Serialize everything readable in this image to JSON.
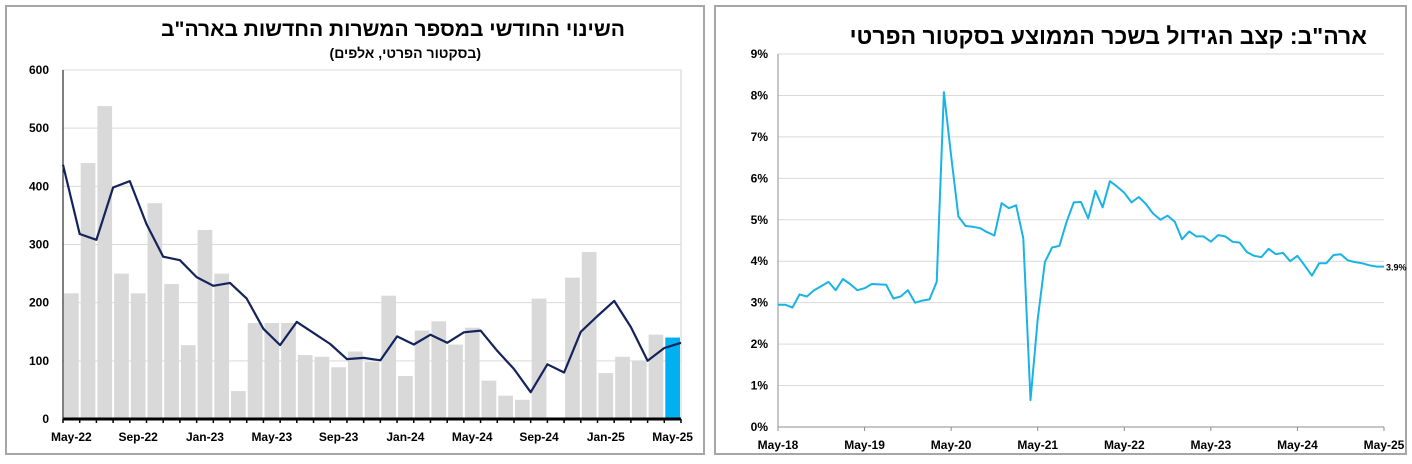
{
  "chart_data": [
    {
      "type": "bar",
      "title": "השינוי החודשי במספר המשרות החדשות בארה\"ב",
      "subtitle": "(בסקטור הפרטי, אלפים)",
      "x_tick_labels": [
        "May-22",
        "Sep-22",
        "Jan-23",
        "May-23",
        "Sep-23",
        "Jan-24",
        "May-24",
        "Sep-24",
        "Jan-25",
        "May-25"
      ],
      "y_tick_labels": [
        "0",
        "100",
        "200",
        "300",
        "400",
        "500",
        "600"
      ],
      "ylim": [
        0,
        600
      ],
      "grid": true,
      "bar_color": "#d9d9d9",
      "highlight_color": "#00b0f0",
      "line_color": "#14245a",
      "bar_values": [
        216,
        440,
        538,
        250,
        216,
        371,
        232,
        127,
        325,
        250,
        48,
        165,
        165,
        165,
        110,
        107,
        89,
        116,
        98,
        212,
        74,
        152,
        168,
        128,
        157,
        66,
        40,
        33,
        207,
        0,
        243,
        287,
        79,
        107,
        100,
        145,
        140
      ],
      "line_values": [
        437,
        318,
        308,
        398,
        409,
        335,
        279,
        273,
        244,
        229,
        234,
        207,
        155,
        127,
        167,
        148,
        129,
        103,
        105,
        101,
        142,
        128,
        145,
        131,
        149,
        152,
        117,
        86,
        46,
        94,
        80,
        150,
        177,
        203,
        158,
        100,
        122,
        131
      ],
      "line_start_index": -0.5
    },
    {
      "type": "line",
      "title": "ארה\"ב: קצב הגידול בשכר הממוצע בסקטור הפרטי",
      "x_tick_labels": [
        "May-18",
        "May-19",
        "May-20",
        "May-21",
        "May-22",
        "May-23",
        "May-24",
        "May-25"
      ],
      "y_tick_labels": [
        "0%",
        "1%",
        "2%",
        "3%",
        "4%",
        "5%",
        "6%",
        "7%",
        "8%",
        "9%"
      ],
      "ylim": [
        0,
        9
      ],
      "grid": true,
      "line_color": "#19b3e6",
      "end_label": "3.9%",
      "values": [
        2.95,
        2.95,
        2.88,
        3.2,
        3.15,
        3.3,
        3.4,
        3.5,
        3.3,
        3.57,
        3.45,
        3.3,
        3.35,
        3.45,
        3.44,
        3.43,
        3.1,
        3.15,
        3.3,
        3.0,
        3.05,
        3.08,
        3.5,
        8.08,
        6.55,
        5.08,
        4.85,
        4.83,
        4.8,
        4.7,
        4.62,
        5.4,
        5.28,
        5.35,
        4.55,
        0.65,
        2.6,
        3.98,
        4.33,
        4.37,
        4.95,
        5.42,
        5.43,
        5.03,
        5.7,
        5.3,
        5.93,
        5.8,
        5.65,
        5.42,
        5.55,
        5.38,
        5.15,
        5.0,
        5.1,
        4.95,
        4.53,
        4.72,
        4.6,
        4.6,
        4.47,
        4.63,
        4.6,
        4.47,
        4.45,
        4.22,
        4.13,
        4.1,
        4.3,
        4.17,
        4.2,
        4.0,
        4.13,
        3.9,
        3.65,
        3.95,
        3.95,
        4.15,
        4.17,
        4.02,
        3.98,
        3.95,
        3.9,
        3.87,
        3.87
      ]
    }
  ]
}
